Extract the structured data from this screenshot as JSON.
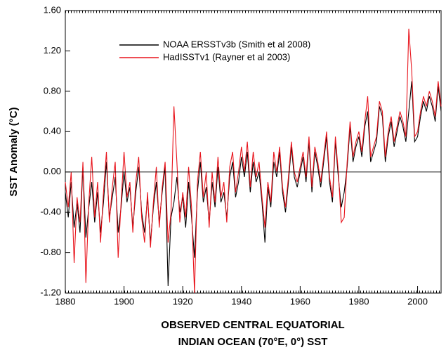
{
  "chart_data": {
    "type": "line",
    "x_label_lines": [
      "OBSERVED CENTRAL EQUATORIAL",
      "INDIAN OCEAN (70°E, 0°) SST"
    ],
    "y_label": "SST Anomaly (°C)",
    "x": [
      1880,
      1881,
      1882,
      1883,
      1884,
      1885,
      1886,
      1887,
      1888,
      1889,
      1890,
      1891,
      1892,
      1893,
      1894,
      1895,
      1896,
      1897,
      1898,
      1899,
      1900,
      1901,
      1902,
      1903,
      1904,
      1905,
      1906,
      1907,
      1908,
      1909,
      1910,
      1911,
      1912,
      1913,
      1914,
      1915,
      1916,
      1917,
      1918,
      1919,
      1920,
      1921,
      1922,
      1923,
      1924,
      1925,
      1926,
      1927,
      1928,
      1929,
      1930,
      1931,
      1932,
      1933,
      1934,
      1935,
      1936,
      1937,
      1938,
      1939,
      1940,
      1941,
      1942,
      1943,
      1944,
      1945,
      1946,
      1947,
      1948,
      1949,
      1950,
      1951,
      1952,
      1953,
      1954,
      1955,
      1956,
      1957,
      1958,
      1959,
      1960,
      1961,
      1962,
      1963,
      1964,
      1965,
      1966,
      1967,
      1968,
      1969,
      1970,
      1971,
      1972,
      1973,
      1974,
      1975,
      1976,
      1977,
      1978,
      1979,
      1980,
      1981,
      1982,
      1983,
      1984,
      1985,
      1986,
      1987,
      1988,
      1989,
      1990,
      1991,
      1992,
      1993,
      1994,
      1995,
      1996,
      1997,
      1998,
      1999,
      2000,
      2001,
      2002,
      2003,
      2004,
      2005,
      2006,
      2007,
      2008
    ],
    "series": [
      {
        "name": "NOAA ERSSTv3b (Smith et al 2008)",
        "color": "#000000",
        "values": [
          -0.2,
          -0.45,
          -0.1,
          -0.55,
          -0.3,
          -0.6,
          0.05,
          -0.65,
          -0.35,
          -0.1,
          -0.5,
          -0.2,
          -0.6,
          -0.3,
          0.1,
          -0.45,
          -0.25,
          -0.05,
          -0.6,
          -0.35,
          0.0,
          -0.3,
          -0.15,
          -0.55,
          -0.2,
          0.05,
          -0.4,
          -0.6,
          -0.25,
          -0.7,
          -0.35,
          -0.1,
          -0.5,
          -0.2,
          0.05,
          -1.13,
          -0.45,
          -0.3,
          -0.05,
          -0.4,
          -0.25,
          -0.55,
          -0.1,
          -0.45,
          -0.85,
          -0.2,
          0.1,
          -0.3,
          -0.15,
          -0.5,
          -0.1,
          -0.35,
          0.05,
          -0.3,
          -0.2,
          -0.45,
          -0.05,
          0.1,
          -0.25,
          -0.1,
          0.15,
          -0.05,
          0.2,
          -0.2,
          0.1,
          -0.1,
          0.0,
          -0.3,
          -0.7,
          -0.15,
          -0.35,
          0.1,
          -0.05,
          0.2,
          -0.2,
          -0.4,
          -0.1,
          0.25,
          -0.05,
          -0.15,
          0.0,
          0.15,
          -0.1,
          0.3,
          -0.2,
          0.2,
          0.05,
          -0.15,
          0.1,
          0.35,
          -0.1,
          -0.3,
          0.3,
          -0.05,
          -0.35,
          -0.2,
          0.05,
          0.45,
          0.1,
          0.25,
          0.35,
          0.15,
          0.45,
          0.6,
          0.1,
          0.2,
          0.3,
          0.65,
          0.55,
          0.1,
          0.35,
          0.5,
          0.25,
          0.4,
          0.55,
          0.45,
          0.3,
          0.6,
          0.9,
          0.3,
          0.35,
          0.55,
          0.7,
          0.6,
          0.75,
          0.65,
          0.5,
          0.85,
          0.6
        ]
      },
      {
        "name": "HadISSTv1 (Rayner et al 2003)",
        "color": "#e8141c",
        "values": [
          -0.1,
          -0.35,
          0.0,
          -0.9,
          -0.25,
          -0.5,
          0.1,
          -1.1,
          -0.3,
          0.15,
          -0.45,
          -0.1,
          -0.7,
          -0.2,
          0.2,
          -0.5,
          -0.15,
          0.1,
          -0.85,
          -0.3,
          0.2,
          -0.25,
          -0.1,
          -0.6,
          -0.1,
          0.15,
          -0.45,
          -0.7,
          -0.2,
          -0.75,
          -0.3,
          0.05,
          -0.55,
          -0.15,
          0.1,
          -0.7,
          -0.4,
          0.65,
          0.1,
          -0.5,
          -0.2,
          -0.45,
          0.05,
          -0.35,
          -1.2,
          -0.1,
          0.2,
          -0.25,
          0.0,
          -0.55,
          0.0,
          -0.3,
          0.15,
          -0.25,
          -0.1,
          -0.5,
          0.05,
          0.2,
          -0.2,
          0.0,
          0.25,
          0.0,
          0.3,
          -0.15,
          0.2,
          -0.05,
          0.1,
          -0.25,
          -0.55,
          -0.1,
          -0.3,
          0.2,
          0.0,
          0.25,
          -0.15,
          -0.35,
          -0.05,
          0.3,
          0.0,
          -0.1,
          0.05,
          0.2,
          -0.05,
          0.35,
          -0.15,
          0.25,
          0.1,
          -0.1,
          0.15,
          0.4,
          -0.05,
          -0.25,
          0.35,
          0.0,
          -0.5,
          -0.45,
          0.1,
          0.5,
          0.15,
          0.3,
          0.4,
          0.2,
          0.5,
          0.75,
          0.15,
          0.25,
          0.35,
          0.7,
          0.6,
          0.15,
          0.4,
          0.55,
          0.3,
          0.45,
          0.6,
          0.5,
          0.35,
          1.42,
          1.0,
          0.35,
          0.4,
          0.6,
          0.75,
          0.65,
          0.8,
          0.7,
          0.55,
          0.9,
          0.65
        ]
      }
    ],
    "xlim": [
      1880,
      2008
    ],
    "xticks": [
      1880,
      1900,
      1920,
      1940,
      1960,
      1980,
      2000
    ],
    "ylim": [
      -1.2,
      1.6
    ],
    "yticks": [
      {
        "value": -1.2,
        "label": "-1.20"
      },
      {
        "value": -0.8,
        "label": "-0.80"
      },
      {
        "value": -0.4,
        "label": "-0.40"
      },
      {
        "value": 0,
        "label": "0.00"
      },
      {
        "value": 0.4,
        "label": "0.40"
      },
      {
        "value": 0.8,
        "label": "0.80"
      },
      {
        "value": 1.2,
        "label": "1.20"
      },
      {
        "value": 1.6,
        "label": "1.60"
      }
    ],
    "zero_line": true,
    "grid": false
  }
}
